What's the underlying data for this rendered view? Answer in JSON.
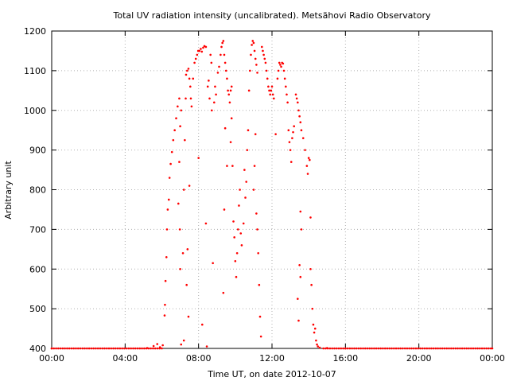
{
  "chart_data": {
    "type": "scatter",
    "title": "Total UV radiation intensity (uncalibrated). Metsähovi Radio Observatory",
    "xlabel": "Time UT, on date 2012-10-07",
    "ylabel": "Arbitrary unit",
    "x_unit": "hours UT",
    "xlim": [
      0,
      24
    ],
    "ylim": [
      400,
      1200
    ],
    "x_ticks": [
      0,
      4,
      8,
      12,
      16,
      20,
      24
    ],
    "x_tick_labels": [
      "00:00",
      "04:00",
      "08:00",
      "12:00",
      "16:00",
      "20:00",
      "00:00"
    ],
    "y_ticks": [
      400,
      500,
      600,
      700,
      800,
      900,
      1000,
      1100,
      1200
    ],
    "y_tick_labels": [
      "400",
      "500",
      "600",
      "700",
      "800",
      "900",
      "1000",
      "1100",
      "1200"
    ],
    "grid": true,
    "legend": "none",
    "series": [
      {
        "marker_color": "#ff0000",
        "points": [
          [
            0.0,
            400
          ],
          [
            5.2,
            401
          ],
          [
            5.55,
            406
          ],
          [
            5.75,
            411
          ],
          [
            5.9,
            403
          ],
          [
            6.05,
            408
          ],
          [
            6.15,
            483
          ],
          [
            6.17,
            510
          ],
          [
            6.2,
            570
          ],
          [
            6.25,
            630
          ],
          [
            6.28,
            700
          ],
          [
            6.32,
            750
          ],
          [
            6.38,
            775
          ],
          [
            6.42,
            830
          ],
          [
            6.48,
            865
          ],
          [
            6.55,
            895
          ],
          [
            6.62,
            925
          ],
          [
            6.7,
            950
          ],
          [
            6.78,
            980
          ],
          [
            6.86,
            1010
          ],
          [
            6.95,
            1030
          ],
          [
            7.05,
            1000
          ],
          [
            7.0,
            960
          ],
          [
            6.95,
            870
          ],
          [
            6.9,
            765
          ],
          [
            6.98,
            700
          ],
          [
            7.0,
            600
          ],
          [
            7.05,
            410
          ],
          [
            7.15,
            640
          ],
          [
            7.2,
            800
          ],
          [
            7.25,
            925
          ],
          [
            7.3,
            1030
          ],
          [
            7.32,
            1090
          ],
          [
            7.38,
            1100
          ],
          [
            7.45,
            1105
          ],
          [
            7.5,
            1080
          ],
          [
            7.55,
            1060
          ],
          [
            7.58,
            1030
          ],
          [
            7.62,
            1010
          ],
          [
            7.7,
            1080
          ],
          [
            7.78,
            1120
          ],
          [
            7.85,
            1130
          ],
          [
            7.92,
            1140
          ],
          [
            7.98,
            1150
          ],
          [
            8.05,
            1150
          ],
          [
            8.12,
            1155
          ],
          [
            8.18,
            1148
          ],
          [
            8.25,
            1158
          ],
          [
            8.32,
            1162
          ],
          [
            8.4,
            1160
          ],
          [
            7.5,
            810
          ],
          [
            7.4,
            650
          ],
          [
            7.35,
            560
          ],
          [
            7.45,
            480
          ],
          [
            7.2,
            420
          ],
          [
            8.0,
            880
          ],
          [
            8.2,
            460
          ],
          [
            8.4,
            715
          ],
          [
            8.45,
            405
          ],
          [
            8.5,
            1060
          ],
          [
            8.55,
            1075
          ],
          [
            8.6,
            1030
          ],
          [
            8.65,
            1140
          ],
          [
            8.7,
            1120
          ],
          [
            8.72,
            1000
          ],
          [
            8.78,
            615
          ],
          [
            8.85,
            1020
          ],
          [
            8.9,
            1060
          ],
          [
            8.95,
            1040
          ],
          [
            9.05,
            1095
          ],
          [
            9.12,
            1110
          ],
          [
            9.2,
            1140
          ],
          [
            9.25,
            1160
          ],
          [
            9.3,
            1170
          ],
          [
            9.35,
            1175
          ],
          [
            9.4,
            1140
          ],
          [
            9.45,
            1120
          ],
          [
            9.5,
            1100
          ],
          [
            9.55,
            1080
          ],
          [
            9.6,
            1050
          ],
          [
            9.65,
            1040
          ],
          [
            9.7,
            1020
          ],
          [
            9.75,
            1050
          ],
          [
            9.8,
            1060
          ],
          [
            9.35,
            540
          ],
          [
            9.4,
            750
          ],
          [
            9.55,
            860
          ],
          [
            9.45,
            955
          ],
          [
            9.75,
            920
          ],
          [
            9.8,
            980
          ],
          [
            9.85,
            860
          ],
          [
            9.9,
            720
          ],
          [
            9.95,
            680
          ],
          [
            10.0,
            620
          ],
          [
            10.05,
            580
          ],
          [
            10.1,
            640
          ],
          [
            10.15,
            700
          ],
          [
            10.2,
            760
          ],
          [
            10.25,
            800
          ],
          [
            10.3,
            690
          ],
          [
            10.35,
            660
          ],
          [
            10.45,
            715
          ],
          [
            10.5,
            850
          ],
          [
            10.55,
            780
          ],
          [
            10.6,
            820
          ],
          [
            10.65,
            900
          ],
          [
            10.7,
            950
          ],
          [
            10.75,
            1050
          ],
          [
            10.8,
            1100
          ],
          [
            10.85,
            1140
          ],
          [
            10.9,
            1165
          ],
          [
            10.95,
            1175
          ],
          [
            11.0,
            1170
          ],
          [
            11.05,
            1150
          ],
          [
            11.1,
            1130
          ],
          [
            11.15,
            1115
          ],
          [
            11.2,
            1095
          ],
          [
            11.1,
            940
          ],
          [
            11.05,
            860
          ],
          [
            11.0,
            800
          ],
          [
            11.15,
            740
          ],
          [
            11.2,
            700
          ],
          [
            11.25,
            640
          ],
          [
            11.3,
            560
          ],
          [
            11.35,
            480
          ],
          [
            11.4,
            430
          ],
          [
            11.45,
            1160
          ],
          [
            11.5,
            1150
          ],
          [
            11.55,
            1140
          ],
          [
            11.6,
            1130
          ],
          [
            11.65,
            1120
          ],
          [
            11.7,
            1100
          ],
          [
            11.75,
            1080
          ],
          [
            11.8,
            1060
          ],
          [
            11.85,
            1050
          ],
          [
            11.9,
            1040
          ],
          [
            11.95,
            1050
          ],
          [
            12.0,
            1060
          ],
          [
            12.05,
            1040
          ],
          [
            12.1,
            1030
          ],
          [
            12.2,
            940
          ],
          [
            12.3,
            1080
          ],
          [
            12.35,
            1100
          ],
          [
            12.4,
            1120
          ],
          [
            12.45,
            1115
          ],
          [
            12.5,
            1110
          ],
          [
            12.55,
            1120
          ],
          [
            12.6,
            1118
          ],
          [
            12.65,
            1100
          ],
          [
            12.7,
            1080
          ],
          [
            12.75,
            1060
          ],
          [
            12.8,
            1040
          ],
          [
            12.85,
            1020
          ],
          [
            12.9,
            950
          ],
          [
            12.95,
            920
          ],
          [
            13.0,
            900
          ],
          [
            13.05,
            870
          ],
          [
            13.1,
            930
          ],
          [
            13.15,
            945
          ],
          [
            13.2,
            960
          ],
          [
            13.3,
            1040
          ],
          [
            13.35,
            1030
          ],
          [
            13.4,
            1020
          ],
          [
            13.45,
            1000
          ],
          [
            13.5,
            985
          ],
          [
            13.55,
            970
          ],
          [
            13.6,
            950
          ],
          [
            13.7,
            930
          ],
          [
            13.8,
            900
          ],
          [
            13.9,
            860
          ],
          [
            13.95,
            840
          ],
          [
            14.0,
            880
          ],
          [
            14.05,
            875
          ],
          [
            14.1,
            730
          ],
          [
            13.55,
            745
          ],
          [
            13.6,
            700
          ],
          [
            13.5,
            610
          ],
          [
            13.55,
            580
          ],
          [
            13.4,
            525
          ],
          [
            13.45,
            470
          ],
          [
            14.1,
            600
          ],
          [
            14.15,
            560
          ],
          [
            14.2,
            500
          ],
          [
            14.25,
            460
          ],
          [
            14.3,
            440
          ],
          [
            14.35,
            450
          ],
          [
            14.4,
            420
          ],
          [
            14.45,
            410
          ],
          [
            14.5,
            405
          ],
          [
            14.6,
            402
          ],
          [
            15.0,
            401
          ],
          [
            16.0,
            400
          ],
          [
            24.0,
            400
          ]
        ]
      }
    ]
  }
}
